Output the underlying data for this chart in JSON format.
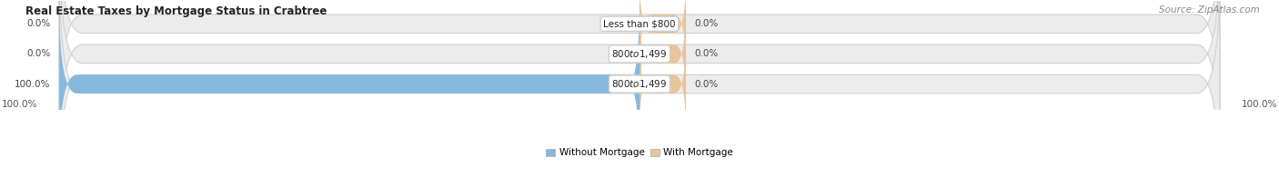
{
  "title": "Real Estate Taxes by Mortgage Status in Crabtree",
  "source": "Source: ZipAtlas.com",
  "rows": [
    {
      "label": "Less than $800",
      "without_mortgage": 0.0,
      "with_mortgage": 0.0
    },
    {
      "label": "$800 to $1,499",
      "without_mortgage": 0.0,
      "with_mortgage": 0.0
    },
    {
      "label": "$800 to $1,499",
      "without_mortgage": 100.0,
      "with_mortgage": 0.0
    }
  ],
  "color_without": "#85b8df",
  "color_with": "#e8c49a",
  "bar_bg_color": "#ececec",
  "bar_border_color": "#d0d0d0",
  "legend_without": "Without Mortgage",
  "legend_with": "With Mortgage",
  "x_left_label": "100.0%",
  "x_right_label": "100.0%",
  "title_fontsize": 8.5,
  "source_fontsize": 7.5,
  "label_fontsize": 7.5,
  "tick_fontsize": 7.5,
  "bar_height": 0.62,
  "total_width": 100
}
